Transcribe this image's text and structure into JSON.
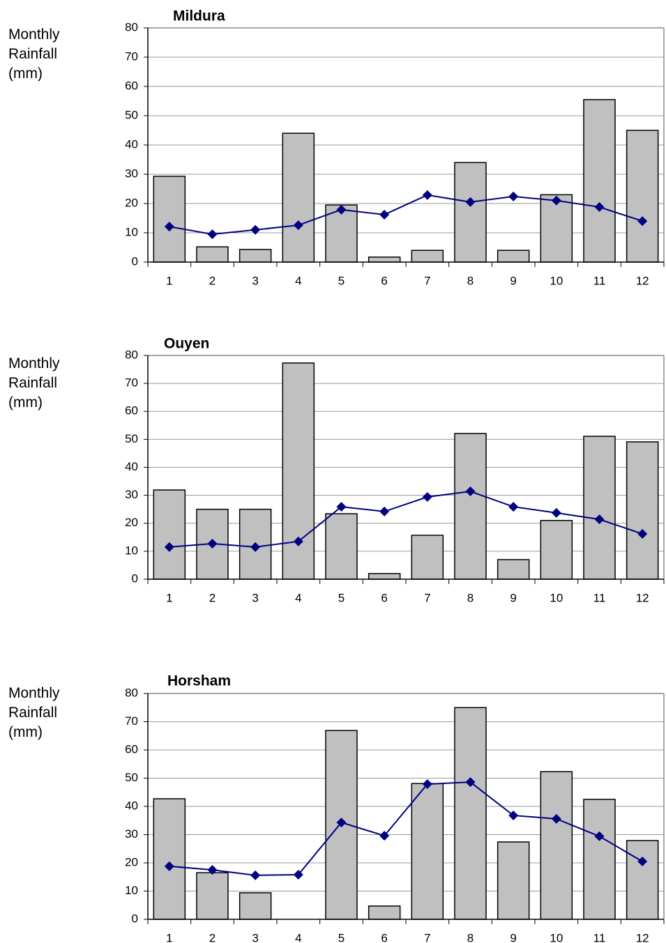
{
  "chart_data": [
    {
      "type": "bar",
      "title": "Mildura",
      "ylabel": "Monthly Rainfall (mm)",
      "categories": [
        "1",
        "2",
        "3",
        "4",
        "5",
        "6",
        "7",
        "8",
        "9",
        "10",
        "11",
        "12"
      ],
      "series": [
        {
          "type": "bar",
          "color": "#c0c0c0",
          "values": [
            29.3,
            5.2,
            4.3,
            44,
            19.5,
            1.7,
            4,
            34,
            4,
            23,
            55.5,
            45
          ]
        },
        {
          "type": "line",
          "color": "#000080",
          "values": [
            12.1,
            9.5,
            11,
            12.6,
            17.9,
            16.2,
            22.9,
            20.5,
            22.4,
            21,
            18.8,
            14
          ]
        }
      ],
      "ylim": [
        0,
        80
      ],
      "yticks": [
        0,
        10,
        20,
        30,
        40,
        50,
        60,
        70,
        80
      ],
      "grid": true
    },
    {
      "type": "bar",
      "title": "Ouyen",
      "ylabel": "Monthly Rainfall (mm)",
      "categories": [
        "1",
        "2",
        "3",
        "4",
        "5",
        "6",
        "7",
        "8",
        "9",
        "10",
        "11",
        "12"
      ],
      "series": [
        {
          "type": "bar",
          "color": "#c0c0c0",
          "values": [
            31.9,
            25,
            25,
            77.3,
            23.4,
            2,
            15.7,
            52.1,
            7,
            21,
            51.1,
            49.1
          ]
        },
        {
          "type": "line",
          "color": "#000080",
          "values": [
            11.5,
            12.7,
            11.5,
            13.5,
            25.9,
            24.2,
            29.4,
            31.4,
            25.9,
            23.7,
            21.4,
            16.2
          ]
        }
      ],
      "ylim": [
        0,
        80
      ],
      "yticks": [
        0,
        10,
        20,
        30,
        40,
        50,
        60,
        70,
        80
      ],
      "grid": true
    },
    {
      "type": "bar",
      "title": "Horsham",
      "ylabel": "Monthly Rainfall (mm)",
      "categories": [
        "1",
        "2",
        "3",
        "4",
        "5",
        "6",
        "7",
        "8",
        "9",
        "10",
        "11",
        "12"
      ],
      "series": [
        {
          "type": "bar",
          "color": "#c0c0c0",
          "values": [
            42.7,
            16.5,
            9.4,
            null,
            66.9,
            4.7,
            48.1,
            75,
            27.4,
            52.3,
            42.5,
            27.9
          ]
        },
        {
          "type": "line",
          "color": "#000080",
          "values": [
            18.8,
            17.5,
            15.6,
            15.8,
            34.3,
            29.6,
            47.9,
            48.6,
            36.8,
            35.6,
            29.4,
            20.5
          ]
        }
      ],
      "ylim": [
        0,
        80
      ],
      "yticks": [
        0,
        10,
        20,
        30,
        40,
        50,
        60,
        70,
        80
      ],
      "grid": true
    }
  ]
}
